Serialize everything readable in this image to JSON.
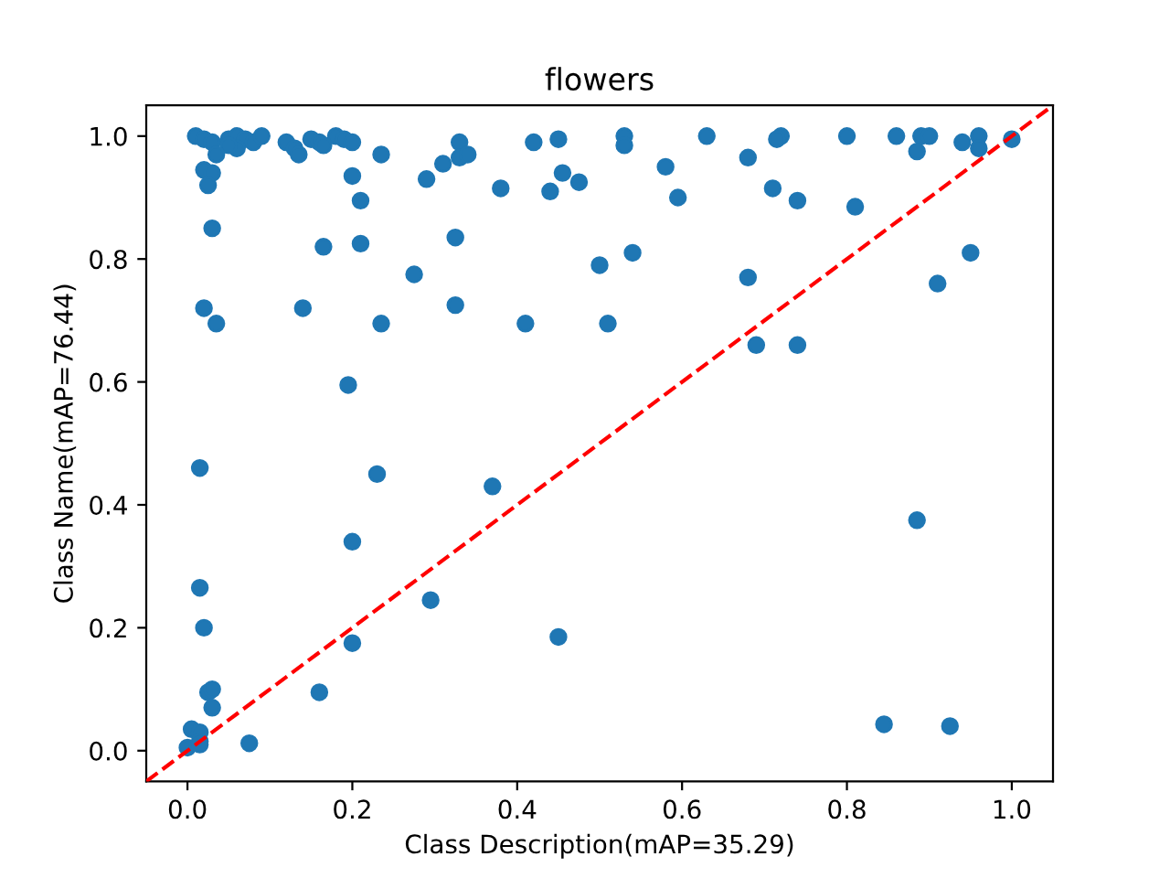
{
  "chart_data": {
    "type": "scatter",
    "title": "flowers",
    "xlabel": "Class Description(mAP=35.29)",
    "ylabel": "Class Name(mAP=76.44)",
    "xlim": [
      -0.05,
      1.05
    ],
    "ylim": [
      -0.05,
      1.05
    ],
    "xticks": [
      {
        "value": 0,
        "label": "0.0"
      },
      0.2,
      0.4,
      0.6,
      0.8,
      {
        "value": 1,
        "label": "1.0"
      }
    ],
    "yticks": [
      {
        "value": 0,
        "label": "0.0"
      },
      0.2,
      0.4,
      0.6,
      0.8,
      {
        "value": 1,
        "label": "1.0"
      }
    ],
    "grid": false,
    "legend": false,
    "marker": "circle",
    "series": [
      {
        "color": "#1f77b4",
        "x": [
          0.01,
          0.02,
          0.03,
          0.05,
          0.06,
          0.07,
          0.08,
          0.09,
          0.12,
          0.15,
          0.16,
          0.18,
          0.19,
          0.2,
          0.33,
          0.42,
          0.45,
          0.53,
          0.63,
          0.72,
          0.8,
          0.86,
          0.89,
          0.9,
          0.94,
          0.96,
          1.0,
          0.715,
          0.06,
          0.05,
          0.13,
          0.135,
          0.165,
          0.235,
          0.33,
          0.34,
          0.31,
          0.02,
          0.03,
          0.025,
          0.035,
          0.2,
          0.21,
          0.29,
          0.38,
          0.44,
          0.455,
          0.475,
          0.58,
          0.595,
          0.68,
          0.71,
          0.74,
          0.81,
          0.885,
          0.96,
          0.53,
          0.03,
          0.165,
          0.21,
          0.325,
          0.275,
          0.5,
          0.54,
          0.68,
          0.95,
          0.91,
          0.02,
          0.035,
          0.14,
          0.235,
          0.325,
          0.41,
          0.51,
          0.69,
          0.74,
          0.195,
          0.015,
          0.23,
          0.37,
          0.885,
          0.015,
          0.2,
          0.295,
          0.02,
          0.2,
          0.45,
          0.025,
          0.03,
          0.16,
          0.03,
          0.005,
          0.015,
          0.015,
          0.0,
          0.075,
          0.845,
          0.925,
          0.015
        ],
        "values": [
          1.0,
          0.995,
          0.99,
          0.995,
          1.0,
          0.995,
          0.99,
          1.0,
          0.99,
          0.995,
          0.99,
          1.0,
          0.995,
          0.99,
          0.99,
          0.99,
          0.995,
          1.0,
          1.0,
          1.0,
          1.0,
          1.0,
          1.0,
          1.0,
          0.99,
          1.0,
          0.995,
          0.995,
          0.98,
          0.985,
          0.98,
          0.97,
          0.985,
          0.97,
          0.965,
          0.97,
          0.955,
          0.945,
          0.94,
          0.92,
          0.97,
          0.935,
          0.895,
          0.93,
          0.915,
          0.91,
          0.94,
          0.925,
          0.95,
          0.9,
          0.965,
          0.915,
          0.895,
          0.885,
          0.975,
          0.98,
          0.985,
          0.85,
          0.82,
          0.825,
          0.835,
          0.775,
          0.79,
          0.81,
          0.77,
          0.81,
          0.76,
          0.72,
          0.695,
          0.72,
          0.695,
          0.725,
          0.695,
          0.695,
          0.66,
          0.66,
          0.595,
          0.46,
          0.45,
          0.43,
          0.375,
          0.265,
          0.34,
          0.245,
          0.2,
          0.175,
          0.185,
          0.095,
          0.1,
          0.095,
          0.07,
          0.035,
          0.03,
          0.015,
          0.005,
          0.012,
          0.043,
          0.04,
          0.01
        ]
      },
      {
        "type": "line",
        "color": "#ff0000",
        "line_style": "dashed",
        "marker": "none",
        "x": [
          -0.05,
          1.05
        ],
        "values": [
          -0.05,
          1.05
        ]
      }
    ]
  }
}
